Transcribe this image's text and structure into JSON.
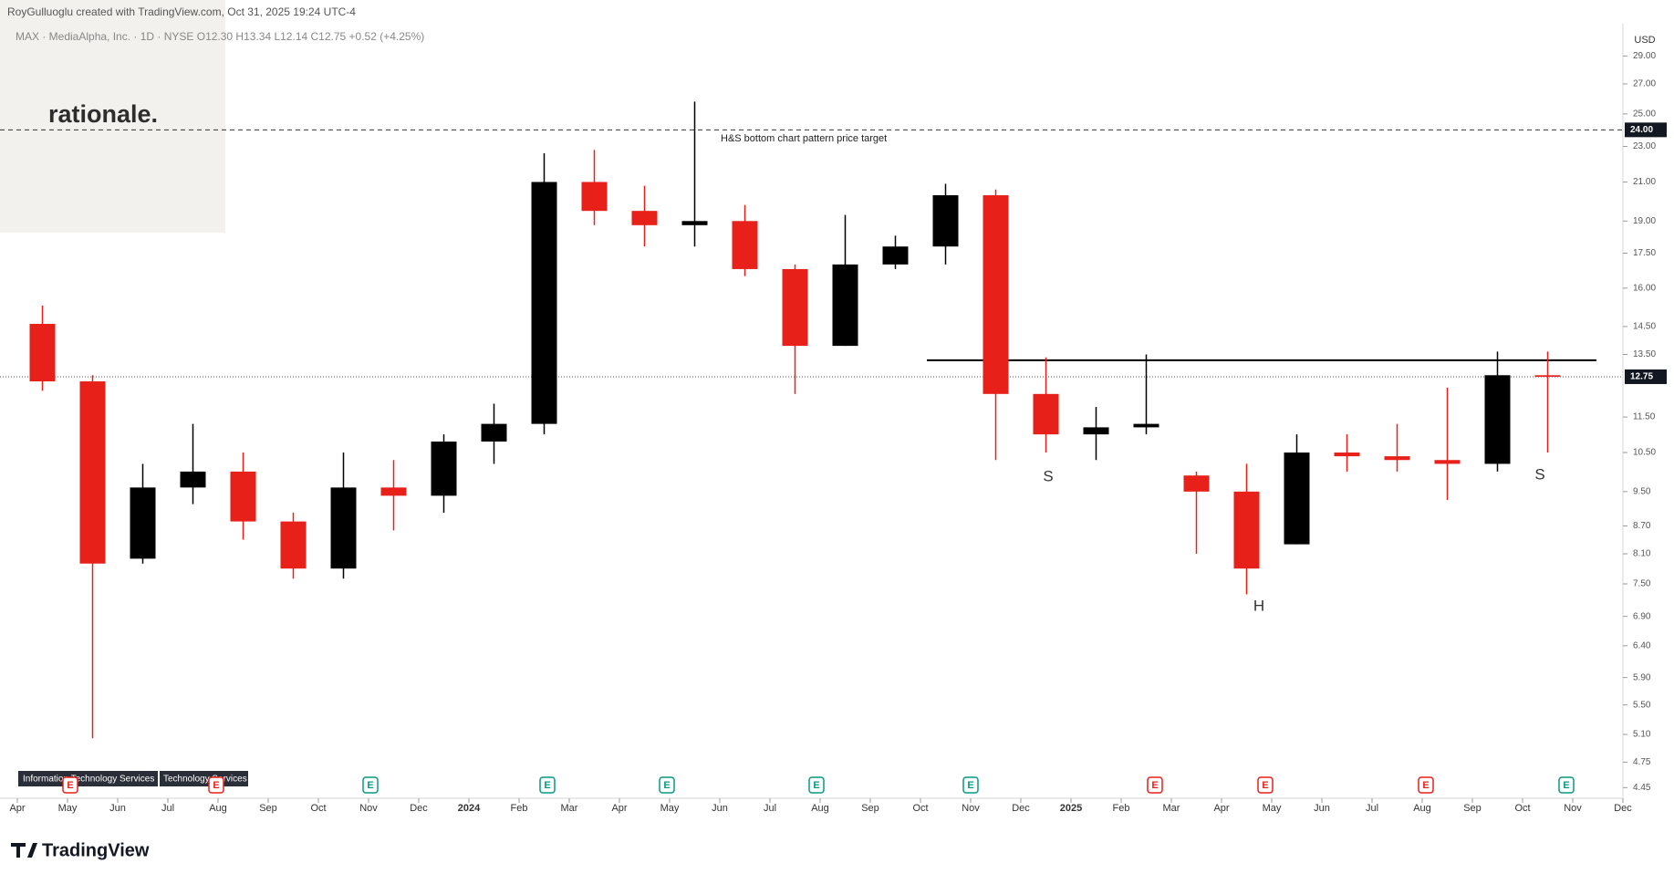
{
  "header": {
    "attribution": "RoyGulluoglu created with TradingView.com, Oct 31, 2025 19:24 UTC-4",
    "symbol_line": "MAX · MediaAlpha, Inc. · 1D · NYSE  O12.30  H13.34  L12.14  C12.75  +0.52 (+4.25%)",
    "logo": "rationale."
  },
  "tags": [
    "Information Technology Services",
    "Technology Services"
  ],
  "earnings_label": "E",
  "footer": {
    "brand": "TradingView"
  },
  "chart_data": {
    "type": "candlestick",
    "currency": "USD",
    "log_scale": true,
    "up_color": "#000000",
    "down_color": "#e8201a",
    "categories": [
      "Apr",
      "May",
      "Jun",
      "Jul",
      "Aug",
      "Sep",
      "Oct",
      "Nov",
      "Dec",
      "2024",
      "Feb",
      "Mar",
      "Apr",
      "May",
      "Jun",
      "Jul",
      "Aug",
      "Sep",
      "Oct",
      "Nov",
      "Dec",
      "2025",
      "Feb",
      "Mar",
      "Apr",
      "May",
      "Jun",
      "Jul",
      "Aug",
      "Sep",
      "Oct",
      "Nov",
      "Dec"
    ],
    "series": [
      {
        "name": "open",
        "values": [
          14.6,
          12.6,
          8.0,
          9.6,
          10.0,
          8.8,
          7.8,
          9.6,
          9.4,
          10.8,
          11.3,
          21.0,
          19.5,
          18.8,
          19.0,
          16.8,
          13.8,
          17.0,
          17.8,
          20.3,
          12.2,
          11.0,
          11.2,
          9.9,
          9.5,
          8.3,
          10.5,
          10.4,
          10.3,
          10.2,
          12.8,
          null,
          null
        ]
      },
      {
        "name": "high",
        "values": [
          15.3,
          12.8,
          10.2,
          11.3,
          10.5,
          9.0,
          10.5,
          10.3,
          11.0,
          11.9,
          22.6,
          22.8,
          20.8,
          25.8,
          19.8,
          17.0,
          19.3,
          18.3,
          20.9,
          20.6,
          13.4,
          11.8,
          13.5,
          10.0,
          10.2,
          11.0,
          11.0,
          11.3,
          12.4,
          13.6,
          13.6,
          null,
          null
        ]
      },
      {
        "name": "low",
        "values": [
          12.3,
          5.05,
          7.9,
          9.2,
          8.4,
          7.6,
          7.6,
          8.6,
          9.0,
          10.2,
          11.0,
          18.8,
          17.8,
          17.8,
          16.5,
          12.2,
          13.8,
          16.8,
          17.0,
          10.3,
          10.5,
          10.3,
          11.0,
          8.1,
          7.3,
          8.3,
          10.0,
          10.0,
          9.3,
          10.0,
          10.5,
          null,
          null
        ]
      },
      {
        "name": "close",
        "values": [
          12.6,
          7.9,
          9.6,
          10.0,
          8.8,
          7.8,
          9.6,
          9.4,
          10.8,
          11.3,
          21.0,
          19.5,
          18.8,
          19.0,
          16.8,
          13.8,
          17.0,
          17.8,
          20.3,
          12.2,
          11.0,
          11.2,
          11.3,
          9.5,
          7.8,
          10.5,
          10.4,
          10.3,
          10.2,
          12.8,
          12.75,
          null,
          null
        ]
      }
    ],
    "ylim": [
      4.33,
      31.5
    ],
    "yticks": [
      {
        "value": 29,
        "label": "29.00"
      },
      {
        "value": 27,
        "label": "27.00"
      },
      {
        "value": 25,
        "label": "25.00"
      },
      {
        "value": 23,
        "label": "23.00"
      },
      {
        "value": 21,
        "label": "21.00"
      },
      {
        "value": 19,
        "label": "19.00"
      },
      {
        "value": 17.5,
        "label": "17.50"
      },
      {
        "value": 16,
        "label": "16.00"
      },
      {
        "value": 14.5,
        "label": "14.50"
      },
      {
        "value": 13.5,
        "label": "13.50"
      },
      {
        "value": 11.5,
        "label": "11.50"
      },
      {
        "value": 10.5,
        "label": "10.50"
      },
      {
        "value": 9.5,
        "label": "9.50"
      },
      {
        "value": 8.7,
        "label": "8.70"
      },
      {
        "value": 8.1,
        "label": "8.10"
      },
      {
        "value": 7.5,
        "label": "7.50"
      },
      {
        "value": 6.9,
        "label": "6.90"
      },
      {
        "value": 6.4,
        "label": "6.40"
      },
      {
        "value": 5.9,
        "label": "5.90"
      },
      {
        "value": 5.5,
        "label": "5.50"
      },
      {
        "value": 5.1,
        "label": "5.10"
      },
      {
        "value": 4.75,
        "label": "4.75"
      },
      {
        "value": 4.45,
        "label": "4.45"
      }
    ],
    "last_price": {
      "value": 12.75,
      "label": "12.75"
    },
    "target": {
      "value": 24,
      "label": "24.00"
    },
    "target_note": "H&S bottom chart pattern price target",
    "neckline": 13.3,
    "pattern_labels": [
      "S",
      "H",
      "S"
    ]
  }
}
